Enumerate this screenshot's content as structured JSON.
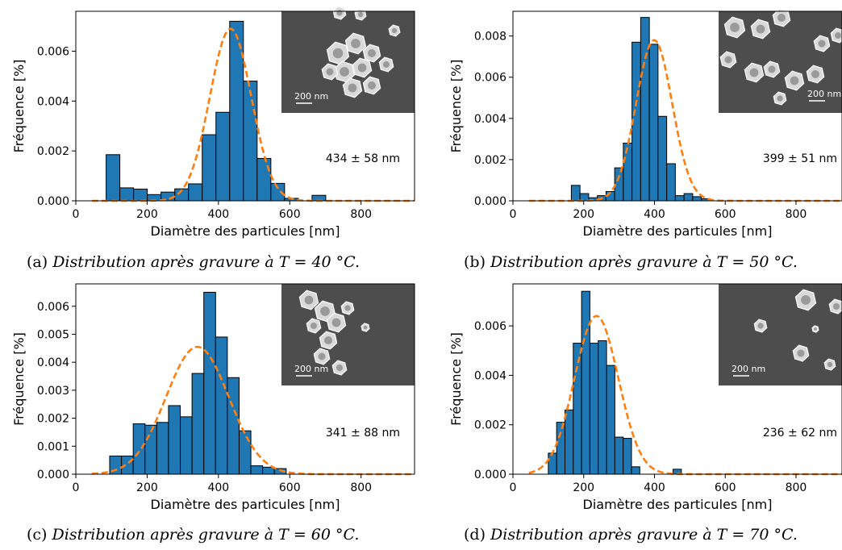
{
  "colors": {
    "bar": "#1f77b4",
    "fit": "#ff7f0e",
    "edge": "#000000"
  },
  "chart_data": [
    {
      "type": "bar",
      "subtitle_label": "(a)",
      "caption": "Distribution après gravure à ",
      "caption_var": "T",
      "caption_value": " = 40 °C.",
      "xlabel": "Diamètre des particules [nm]",
      "ylabel": "Fréquence [%]",
      "xlim": [
        0,
        950
      ],
      "ylim": [
        0,
        0.0076
      ],
      "xticks": [
        0,
        200,
        400,
        600,
        800
      ],
      "yticks": [
        0,
        0.002,
        0.004,
        0.006
      ],
      "ytick_labels": [
        "0.000",
        "0.002",
        "0.004",
        "0.006"
      ],
      "bin_start": 85,
      "bin_width": 38.5,
      "values": [
        0.00185,
        0.00052,
        0.00047,
        0.00025,
        0.00035,
        0.00048,
        0.00068,
        0.00265,
        0.00355,
        0.0072,
        0.0048,
        0.0017,
        0.0007,
        0.0001,
        0.0,
        0.00022
      ],
      "fit": {
        "mean": 434,
        "sigma": 58,
        "peak": 0.0069
      },
      "annotation": "434 ± 58 nm",
      "inset_label": "200 nm"
    },
    {
      "type": "bar",
      "subtitle_label": "(b)",
      "caption": "Distribution après gravure à ",
      "caption_var": "T",
      "caption_value": " = 50 °C.",
      "xlabel": "Diamètre des particules [nm]",
      "ylabel": "Fréquence [%]",
      "xlim": [
        0,
        930
      ],
      "ylim": [
        0,
        0.0092
      ],
      "xticks": [
        0,
        200,
        400,
        600,
        800
      ],
      "yticks": [
        0,
        0.002,
        0.004,
        0.006,
        0.008
      ],
      "ytick_labels": [
        "0.000",
        "0.002",
        "0.004",
        "0.006",
        "0.008"
      ],
      "bin_start": 165,
      "bin_width": 24.5,
      "values": [
        0.00075,
        0.00035,
        0.00015,
        0.00025,
        0.00045,
        0.0016,
        0.0028,
        0.0077,
        0.0089,
        0.0076,
        0.0041,
        0.0018,
        0.00025,
        0.00035,
        0.0002,
        0.0001,
        0.0
      ],
      "fit": {
        "mean": 399,
        "sigma": 51,
        "peak": 0.0078
      },
      "annotation": "399 ± 51 nm",
      "inset_label": "200 nm"
    },
    {
      "type": "bar",
      "subtitle_label": "(c)",
      "caption": "Distribution après gravure à ",
      "caption_var": "T",
      "caption_value": " = 60 °C.",
      "xlabel": "Diamètre des particules [nm]",
      "ylabel": "Fréquence [%]",
      "xlim": [
        0,
        950
      ],
      "ylim": [
        0,
        0.0068
      ],
      "xticks": [
        0,
        200,
        400,
        600,
        800
      ],
      "yticks": [
        0,
        0.001,
        0.002,
        0.003,
        0.004,
        0.005,
        0.006
      ],
      "ytick_labels": [
        "0.000",
        "0.001",
        "0.002",
        "0.003",
        "0.004",
        "0.005",
        "0.006"
      ],
      "bin_start": 95,
      "bin_width": 33,
      "values": [
        0.00065,
        0.00065,
        0.0018,
        0.00175,
        0.00185,
        0.00245,
        0.00205,
        0.0036,
        0.0065,
        0.0049,
        0.00345,
        0.00155,
        0.0003,
        0.00025,
        0.0002
      ],
      "fit": {
        "mean": 341,
        "sigma": 88,
        "peak": 0.00455
      },
      "annotation": "341 ± 88 nm",
      "inset_label": "200 nm"
    },
    {
      "type": "bar",
      "subtitle_label": "(d)",
      "caption": "Distribution après gravure à ",
      "caption_var": "T",
      "caption_value": " = 70 °C.",
      "xlabel": "Diamètre des particules [nm]",
      "ylabel": "Fréquence [%]",
      "xlim": [
        0,
        930
      ],
      "ylim": [
        0,
        0.0077
      ],
      "xticks": [
        0,
        200,
        400,
        600,
        800
      ],
      "yticks": [
        0,
        0.002,
        0.004,
        0.006
      ],
      "ytick_labels": [
        "0.000",
        "0.002",
        "0.004",
        "0.006"
      ],
      "bin_start": 100,
      "bin_width": 23.5,
      "values": [
        0.00085,
        0.0021,
        0.0026,
        0.0053,
        0.0074,
        0.0053,
        0.0054,
        0.0044,
        0.0015,
        0.00145,
        0.0003,
        0.0,
        0.0,
        0.0,
        0.0,
        0.0002
      ],
      "fit": {
        "mean": 236,
        "sigma": 62,
        "peak": 0.0064
      },
      "annotation": "236 ± 62 nm",
      "inset_label": "200 nm"
    }
  ]
}
